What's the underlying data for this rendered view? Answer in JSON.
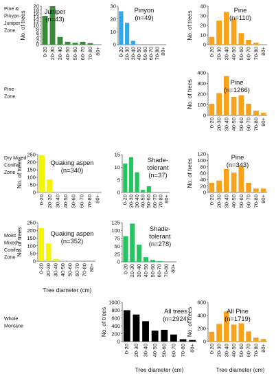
{
  "zones": [
    "Pine & Pinyon-Juniper Zone",
    "Pine Zone",
    "Dry Mixed-Conifer Zone",
    "Moist Mixed Conifer Zone",
    "Whole Montane"
  ],
  "colors": {
    "juniper": "#3a8a3a",
    "pinyon": "#33a8e8",
    "pine": "#f7a21b",
    "aspen": "#f5f500",
    "shade": "#22c55e",
    "all": "#000000"
  },
  "chart_data": [
    {
      "type": "bar",
      "zone": "Pine & Pinyon-Juniper Zone",
      "name": "Juniper",
      "n": "(n=43)",
      "color": "#3a8a3a",
      "categories": [
        "0-20",
        "20-30",
        "30-40",
        "40-50",
        "50-60",
        "60-70",
        "70-80",
        "80+"
      ],
      "values": [
        15,
        20,
        4,
        1.5,
        1,
        1.5,
        0.8,
        0
      ],
      "ylim": [
        0,
        20
      ],
      "yticks": [
        0,
        2,
        4,
        6,
        8,
        10,
        12,
        14,
        16,
        18,
        20
      ],
      "ylabel": "No. of trees",
      "xlabel": ""
    },
    {
      "type": "bar",
      "zone": "Pine & Pinyon-Juniper Zone",
      "name": "Pinyon",
      "n": "(n=49)",
      "color": "#33a8e8",
      "categories": [
        "0-20",
        "20-30",
        "30-40",
        "40-50",
        "50-60",
        "60-70",
        "70-80",
        "80+"
      ],
      "values": [
        26,
        17,
        3,
        0,
        0,
        0,
        0,
        0
      ],
      "ylim": [
        0,
        30
      ],
      "yticks": [
        0,
        10,
        20,
        30
      ],
      "ylabel": "",
      "xlabel": ""
    },
    {
      "type": "bar",
      "zone": "Pine & Pinyon-Juniper Zone",
      "name": "Pine",
      "n": "(n=110)",
      "color": "#f7a21b",
      "categories": [
        "0-20",
        "20-30",
        "30-40",
        "40-50",
        "50-60",
        "60-70",
        "70-80",
        "80+"
      ],
      "values": [
        8,
        25,
        34,
        27,
        12,
        5,
        2,
        0
      ],
      "ylim": [
        0,
        40
      ],
      "yticks": [
        0,
        10,
        20,
        30,
        40
      ],
      "ylabel": "No. of trees",
      "xlabel": ""
    },
    {
      "type": "bar",
      "zone": "Pine Zone",
      "name": "Pine",
      "n": "(n=1266)",
      "color": "#f7a21b",
      "categories": [
        "0-20",
        "20-30",
        "30-40",
        "40-50",
        "50-60",
        "60-70",
        "70-80",
        "80+"
      ],
      "values": [
        110,
        210,
        370,
        175,
        190,
        110,
        45,
        25
      ],
      "ylim": [
        0,
        400
      ],
      "yticks": [
        0,
        100,
        200,
        300,
        400
      ],
      "ylabel": "No. of trees",
      "xlabel": ""
    },
    {
      "type": "bar",
      "zone": "Dry Mixed-Conifer Zone",
      "name": "Quaking aspen",
      "n": "(n=340)",
      "color": "#f5f500",
      "categories": [
        "0-20",
        "20-30",
        "30-40",
        "40-50",
        "50-60",
        "60-70",
        "70-80",
        "80+"
      ],
      "values": [
        245,
        85,
        5,
        0,
        0,
        0,
        0,
        0
      ],
      "ylim": [
        0,
        250
      ],
      "yticks": [
        0,
        50,
        100,
        150,
        200,
        250
      ],
      "ylabel": "No. of trees",
      "xlabel": ""
    },
    {
      "type": "bar",
      "zone": "Dry Mixed-Conifer Zone",
      "name": "Shade-tolerant",
      "n": "(n=37)",
      "color": "#22c55e",
      "categories": [
        "0-20",
        "20-30",
        "30-40",
        "40-50",
        "50-60",
        "60-70",
        "70-80",
        "80+"
      ],
      "values": [
        11.5,
        14,
        8,
        1,
        2.5,
        0,
        0,
        0
      ],
      "ylim": [
        0,
        15
      ],
      "yticks": [
        0,
        5,
        10,
        15
      ],
      "ylabel": "",
      "xlabel": ""
    },
    {
      "type": "bar",
      "zone": "Dry Mixed-Conifer Zone",
      "name": "Pine",
      "n": "(n=343)",
      "color": "#f7a21b",
      "categories": [
        "0-20",
        "20-30",
        "30-40",
        "40-50",
        "50-60",
        "60-70",
        "70-80",
        "80+"
      ],
      "values": [
        30,
        37,
        73,
        62,
        82,
        30,
        12,
        12
      ],
      "ylim": [
        0,
        120
      ],
      "yticks": [
        0,
        20,
        40,
        60,
        80,
        100,
        120
      ],
      "ylabel": "No. of trees",
      "xlabel": ""
    },
    {
      "type": "bar",
      "zone": "Moist Mixed Conifer Zone",
      "name": "Quaking aspen",
      "n": "(n=352)",
      "color": "#f5f500",
      "categories": [
        "0-20",
        "20-30",
        "30-40",
        "40-50",
        "50-60",
        "60-70",
        "70-80",
        "80+"
      ],
      "values": [
        215,
        115,
        15,
        4,
        2,
        0,
        0,
        0
      ],
      "ylim": [
        0,
        250
      ],
      "yticks": [
        0,
        50,
        100,
        150,
        200,
        250
      ],
      "ylabel": "No. of trees",
      "xlabel": "Tree diameter (cm)"
    },
    {
      "type": "bar",
      "zone": "Moist Mixed Conifer Zone",
      "name": "Shade-tolerant",
      "n": "(n=278)",
      "color": "#22c55e",
      "categories": [
        "0-20",
        "20-30",
        "30-40",
        "40-50",
        "50-60",
        "60-70",
        "70-80",
        "80+"
      ],
      "values": [
        82,
        122,
        55,
        15,
        6,
        2,
        0,
        0
      ],
      "ylim": [
        0,
        125
      ],
      "yticks": [
        0,
        25,
        50,
        75,
        100,
        125
      ],
      "ylabel": "",
      "xlabel": ""
    },
    {
      "type": "bar",
      "zone": "Whole Montane",
      "name": "All trees",
      "n": "(n=2924)",
      "color": "#000000",
      "categories": [
        "0-20",
        "20-30",
        "30-40",
        "40-50",
        "50-60",
        "60-70",
        "70-80",
        "80+"
      ],
      "values": [
        800,
        690,
        520,
        280,
        300,
        180,
        60,
        40
      ],
      "ylim": [
        0,
        1000
      ],
      "yticks": [
        0,
        200,
        400,
        600,
        800,
        1000
      ],
      "ylabel": "No. of trees",
      "xlabel": "Tree diameter (cm)"
    },
    {
      "type": "bar",
      "zone": "Whole Montane",
      "name": "All Pine",
      "n": "(n=1719)",
      "color": "#f7a21b",
      "categories": [
        "0-20",
        "20-30",
        "30-40",
        "40-50",
        "50-60",
        "60-70",
        "70-80",
        "80+"
      ],
      "values": [
        150,
        270,
        460,
        260,
        280,
        155,
        60,
        40
      ],
      "ylim": [
        0,
        600
      ],
      "yticks": [
        0,
        200,
        400,
        600
      ],
      "ylabel": "No. of trees",
      "xlabel": "Tree diameter (cm)"
    }
  ]
}
